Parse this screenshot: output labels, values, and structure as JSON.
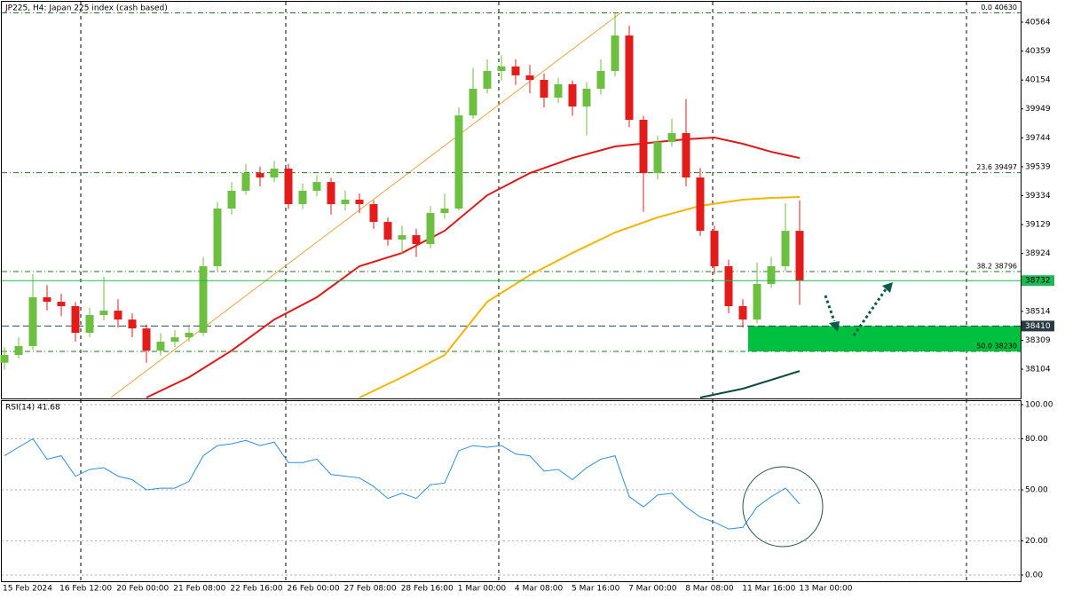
{
  "chart_data": [
    {
      "type": "candlestick",
      "title": "JP225, H4:  Japan 225 index (cash based)",
      "open": [
        38150,
        38205,
        38268,
        38614,
        38582,
        38551,
        38362,
        38488,
        38519,
        38456,
        38393,
        38236,
        38299,
        38330,
        38362,
        38834,
        39243,
        39369,
        39494,
        39463,
        39526,
        39274,
        39369,
        39431,
        39274,
        39306,
        39274,
        39148,
        39023,
        39054,
        38991,
        39211,
        39243,
        39903,
        40092,
        40218,
        40250,
        40187,
        40155,
        40029,
        40124,
        39966,
        40092,
        40218,
        40470,
        39872,
        39494,
        39715,
        39778,
        39463,
        39085,
        38834,
        38551,
        38456,
        38708,
        38834,
        39085
      ],
      "high": [
        38260,
        38330,
        38780,
        38700,
        38640,
        38580,
        38540,
        38760,
        38600,
        38500,
        38420,
        38360,
        38380,
        38420,
        38900,
        39290,
        39430,
        39560,
        39540,
        39580,
        39560,
        39420,
        39480,
        39460,
        39370,
        39350,
        39300,
        39180,
        39120,
        39100,
        39260,
        39350,
        39960,
        40240,
        40300,
        40330,
        40300,
        40260,
        40200,
        40170,
        40150,
        40140,
        40300,
        40630,
        40540,
        39900,
        39760,
        39880,
        40020,
        39530,
        39120,
        38880,
        38600,
        38860,
        38900,
        39280,
        39300
      ],
      "low": [
        38100,
        38180,
        38240,
        38520,
        38480,
        38300,
        38330,
        38450,
        38400,
        38330,
        38150,
        38200,
        38260,
        38300,
        38340,
        38800,
        39200,
        39340,
        39400,
        39430,
        39240,
        39240,
        39330,
        39200,
        39230,
        39210,
        39100,
        38980,
        38920,
        38900,
        38960,
        39170,
        39230,
        39880,
        40060,
        40150,
        40120,
        40060,
        39960,
        39990,
        39900,
        39760,
        40050,
        40180,
        39820,
        39220,
        39450,
        39680,
        39400,
        39050,
        38780,
        38500,
        38400,
        38430,
        38680,
        38800,
        38560
      ],
      "close": [
        38205,
        38268,
        38614,
        38582,
        38551,
        38362,
        38488,
        38519,
        38456,
        38393,
        38236,
        38299,
        38330,
        38362,
        38834,
        39243,
        39369,
        39494,
        39463,
        39526,
        39274,
        39369,
        39431,
        39274,
        39306,
        39274,
        39148,
        39023,
        39054,
        38991,
        39211,
        39243,
        39903,
        40092,
        40218,
        40250,
        40187,
        40155,
        40029,
        40124,
        39966,
        40092,
        40218,
        40470,
        39872,
        39494,
        39715,
        39778,
        39463,
        39085,
        38834,
        38551,
        38456,
        38708,
        38834,
        39085,
        38732
      ],
      "up_color": "#6cbf40",
      "down_color": "#e31b1b",
      "ylim": [
        37903,
        40696
      ],
      "yticks": [
        40564,
        40359,
        40154,
        39949,
        39744,
        39539,
        39334,
        39129,
        38924,
        38719,
        38514,
        38309,
        38104
      ],
      "levels": [
        {
          "label": "0.0 40630",
          "value": 40630
        },
        {
          "label": "23.6 39497",
          "value": 39497
        },
        {
          "label": "38.2 38796",
          "value": 38796
        },
        {
          "label": "50.0 38230",
          "value": 38230
        }
      ],
      "level_color": "#1f7a1f",
      "current_price": 38732,
      "current_color": "#1db954",
      "marked_price": 38410,
      "zone": {
        "from": 38230,
        "to": 38410,
        "color": "#00c040"
      },
      "moving_averages": [
        {
          "color": "#e01818",
          "x": [
            10,
            13,
            16,
            19,
            22,
            25,
            28,
            31,
            34,
            37,
            40,
            43,
            46,
            48,
            50,
            52,
            54,
            56
          ],
          "values": [
            37903,
            38047,
            38236,
            38456,
            38614,
            38834,
            38928,
            39085,
            39337,
            39494,
            39601,
            39683,
            39715,
            39734,
            39746,
            39702,
            39645,
            39601
          ]
        },
        {
          "color": "#f5b400",
          "x": [
            25,
            28,
            31,
            34,
            37,
            40,
            43,
            46,
            49,
            52,
            54,
            56
          ],
          "values": [
            37903,
            38047,
            38205,
            38582,
            38771,
            38928,
            39073,
            39180,
            39262,
            39306,
            39318,
            39325
          ]
        },
        {
          "color": "#0d4a3a",
          "x": [
            49,
            52,
            56
          ],
          "values": [
            37903,
            37966,
            38091
          ]
        }
      ],
      "time_labels": [
        "15 Feb 2024",
        "16 Feb 12:00",
        "20 Feb 00:00",
        "21 Feb 08:00",
        "22 Feb 16:00",
        "26 Feb 00:00",
        "27 Feb 08:00",
        "28 Feb 16:00",
        "1 Mar 00:00",
        "4 Mar 08:00",
        "5 Mar 16:00",
        "7 Mar 00:00",
        "8 Mar 08:00",
        "11 Mar 16:00",
        "13 Mar 00:00"
      ]
    },
    {
      "type": "line",
      "title": "RSI(14) 41.68",
      "color": "#2a8fe0",
      "values": [
        70,
        75,
        80,
        68,
        70,
        58,
        62,
        63,
        58,
        56,
        50,
        51,
        51,
        55,
        70,
        76,
        77,
        79,
        76,
        78,
        66,
        66,
        68,
        59,
        58,
        57,
        52,
        45,
        48,
        45,
        53,
        54,
        73,
        76,
        75,
        76,
        71,
        70,
        61,
        62,
        56,
        63,
        68,
        70,
        46,
        40,
        47,
        48,
        40,
        34,
        31,
        27,
        28,
        40,
        46,
        51,
        41.68
      ],
      "ylim": [
        0,
        100
      ],
      "yticks": [
        {
          "value": 100,
          "label": "100.00"
        },
        {
          "value": 80,
          "label": "80.00"
        },
        {
          "value": 50,
          "label": "50.00"
        },
        {
          "value": 20,
          "label": "20.00"
        },
        {
          "value": 0,
          "label": "0.00"
        }
      ],
      "grid": true
    }
  ]
}
